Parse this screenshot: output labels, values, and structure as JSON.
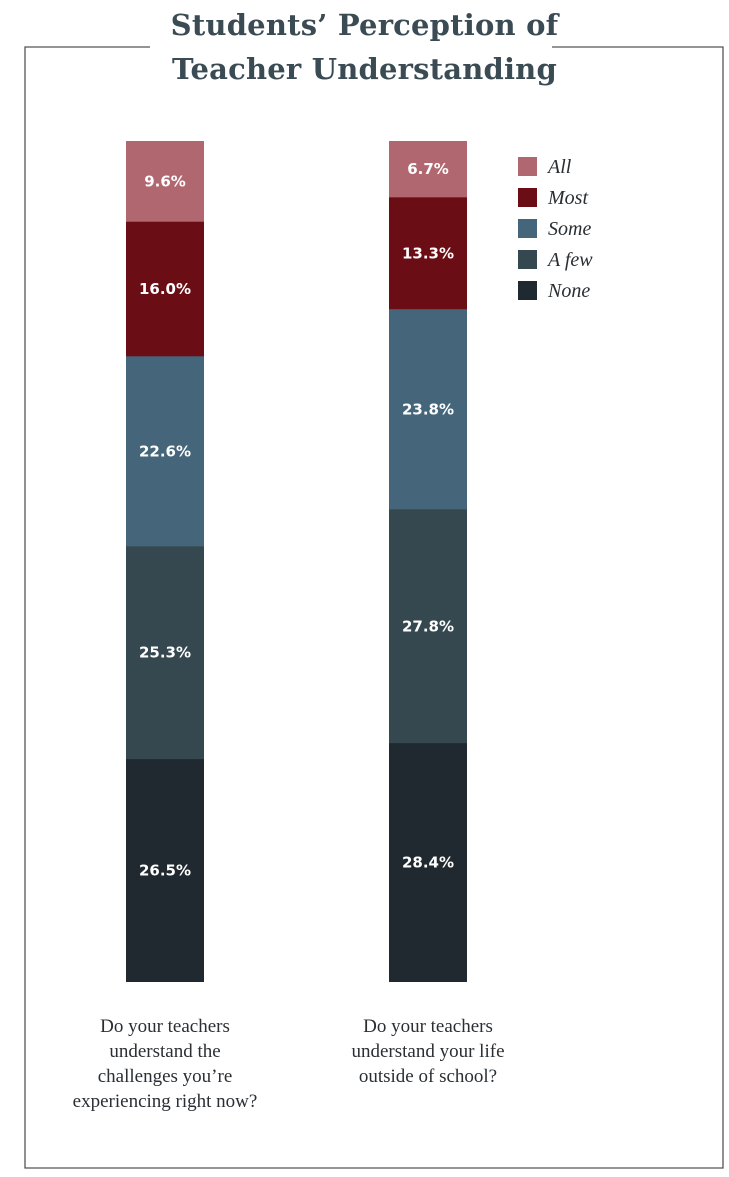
{
  "chart_data": {
    "type": "stacked_bar",
    "title_lines": [
      "Students’ Perception of",
      "Teacher Understanding"
    ],
    "categories": [
      {
        "lines": [
          "Do your teachers",
          "understand the",
          "challenges you’re",
          "experiencing right now?"
        ],
        "values": {
          "All": 9.6,
          "Most": 16.0,
          "Some": 22.6,
          "A few": 25.3,
          "None": 26.5
        },
        "labels": {
          "All": "9.6%",
          "Most": "16.0%",
          "Some": "22.6%",
          "A few": "25.3%",
          "None": "26.5%"
        }
      },
      {
        "lines": [
          "Do your teachers",
          "understand your life",
          "outside of school?"
        ],
        "values": {
          "All": 6.7,
          "Most": 13.3,
          "Some": 23.8,
          "A few": 27.8,
          "None": 28.4
        },
        "labels": {
          "All": "6.7%",
          "Most": "13.3%",
          "Some": "23.8%",
          "A few": "27.8%",
          "None": "28.4%"
        }
      }
    ],
    "series": [
      {
        "name": "All",
        "color": "#b0676f"
      },
      {
        "name": "Most",
        "color": "#6b0d15"
      },
      {
        "name": "Some",
        "color": "#45667a"
      },
      {
        "name": "A few",
        "color": "#35474f"
      },
      {
        "name": "None",
        "color": "#20292f"
      }
    ],
    "stack_order": "top-to-bottom",
    "legend_position": "top-right"
  },
  "frame_color": "#555555"
}
